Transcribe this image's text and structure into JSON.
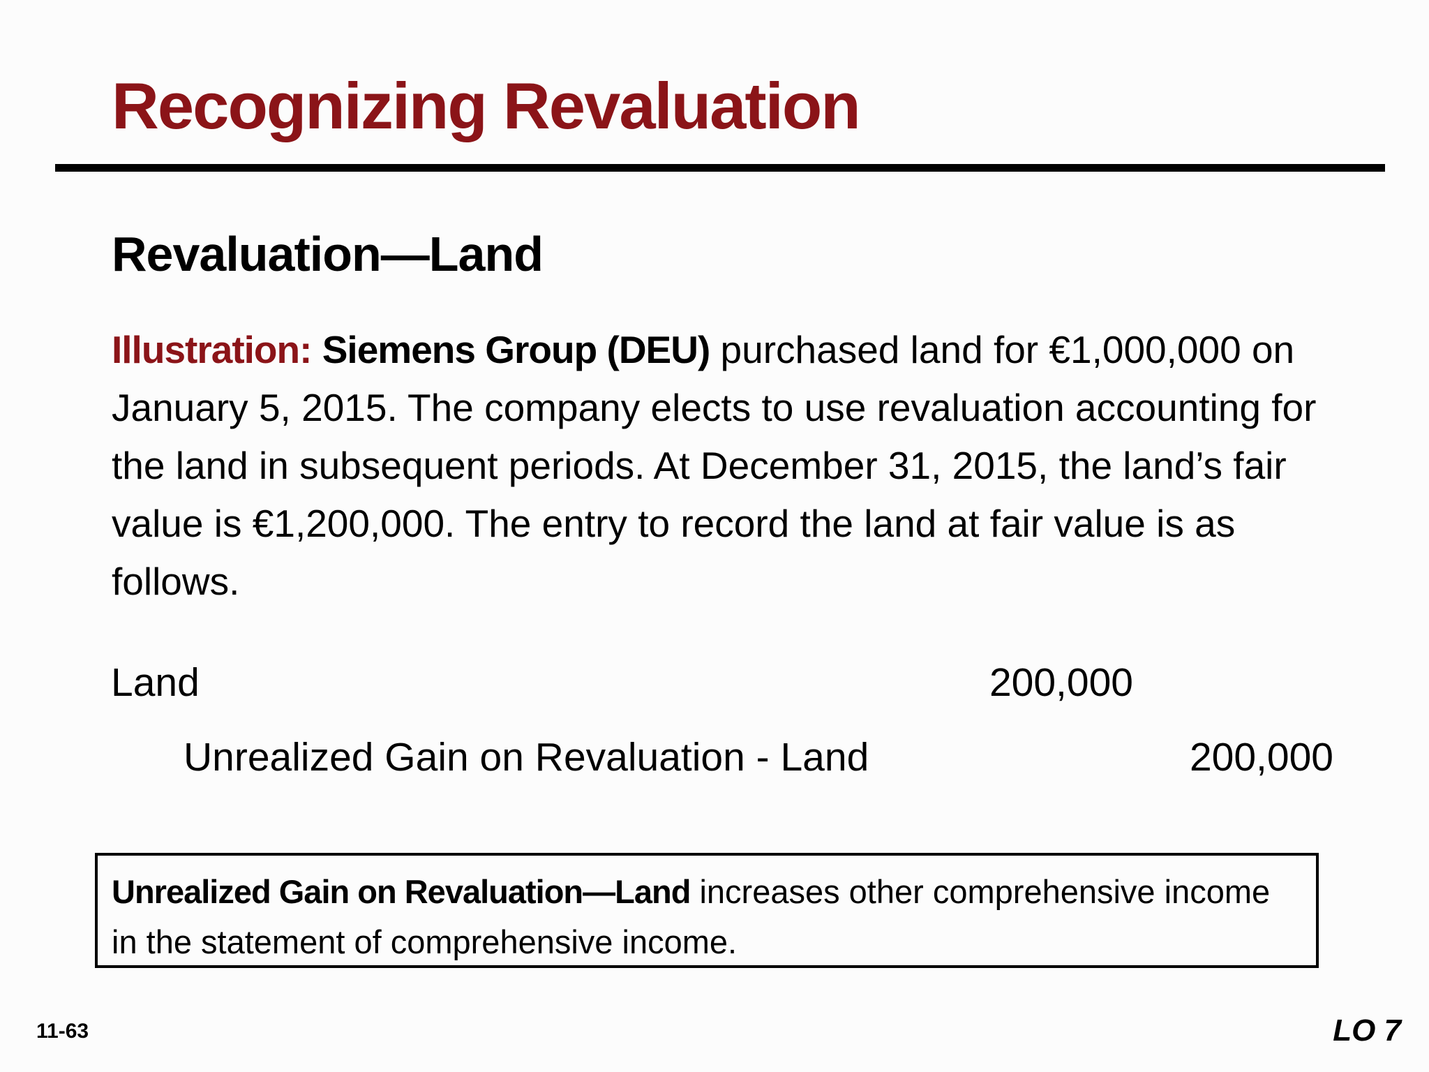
{
  "slide": {
    "title": "Recognizing Revaluation",
    "subtitle": "Revaluation—Land"
  },
  "illustration": {
    "label": "Illustration:",
    "company": "Siemens Group (DEU)",
    "text": " purchased land for €1,000,000 on January 5, 2015. The company elects to use revaluation accounting for the land in subsequent periods. At December 31, 2015, the land’s fair value is €1,200,000. The entry to record the land at fair value is as follows."
  },
  "journal_entry": {
    "debit": {
      "account": "Land",
      "amount": "200,000"
    },
    "credit": {
      "account": "Unrealized Gain on Revaluation - Land",
      "amount": "200,000"
    }
  },
  "note": {
    "term": "Unrealized Gain on Revaluation—Land",
    "text": " increases other comprehensive income in the statement of comprehensive income."
  },
  "footer": {
    "slide_number": "11-63",
    "learning_objective": "LO 7"
  }
}
